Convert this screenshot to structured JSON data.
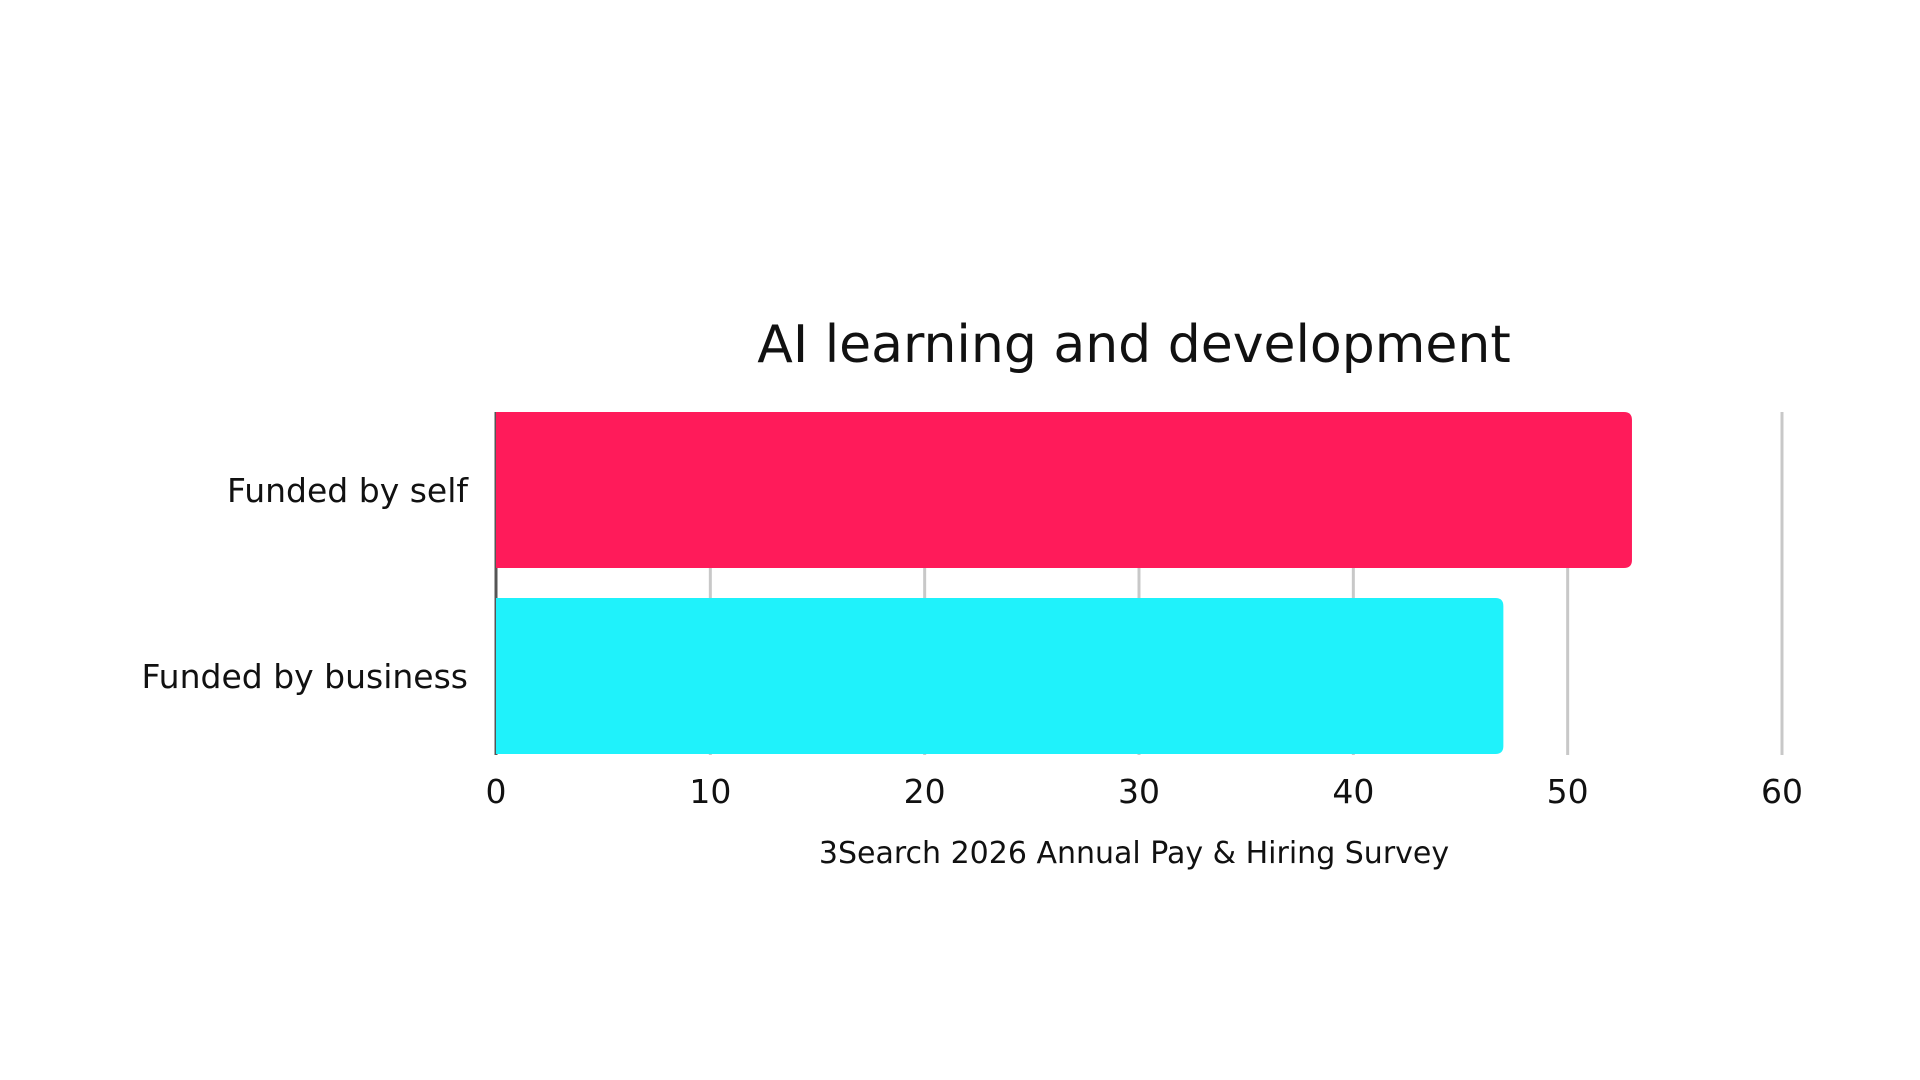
{
  "chart_data": {
    "type": "bar",
    "orientation": "horizontal",
    "title": "AI learning and development",
    "categories": [
      "Funded by self",
      "Funded by business"
    ],
    "values": [
      53,
      47
    ],
    "colors": [
      "#ff1b5a",
      "#1ff2fb"
    ],
    "xlabel": "3Search 2026 Annual Pay & Hiring Survey",
    "ylabel": "",
    "xlim": [
      0,
      60
    ],
    "xticks": [
      "0",
      "10",
      "20",
      "30",
      "40",
      "50",
      "60"
    ],
    "grid": "vertical",
    "gridColor": "#c8c8c8",
    "legend": "none"
  }
}
